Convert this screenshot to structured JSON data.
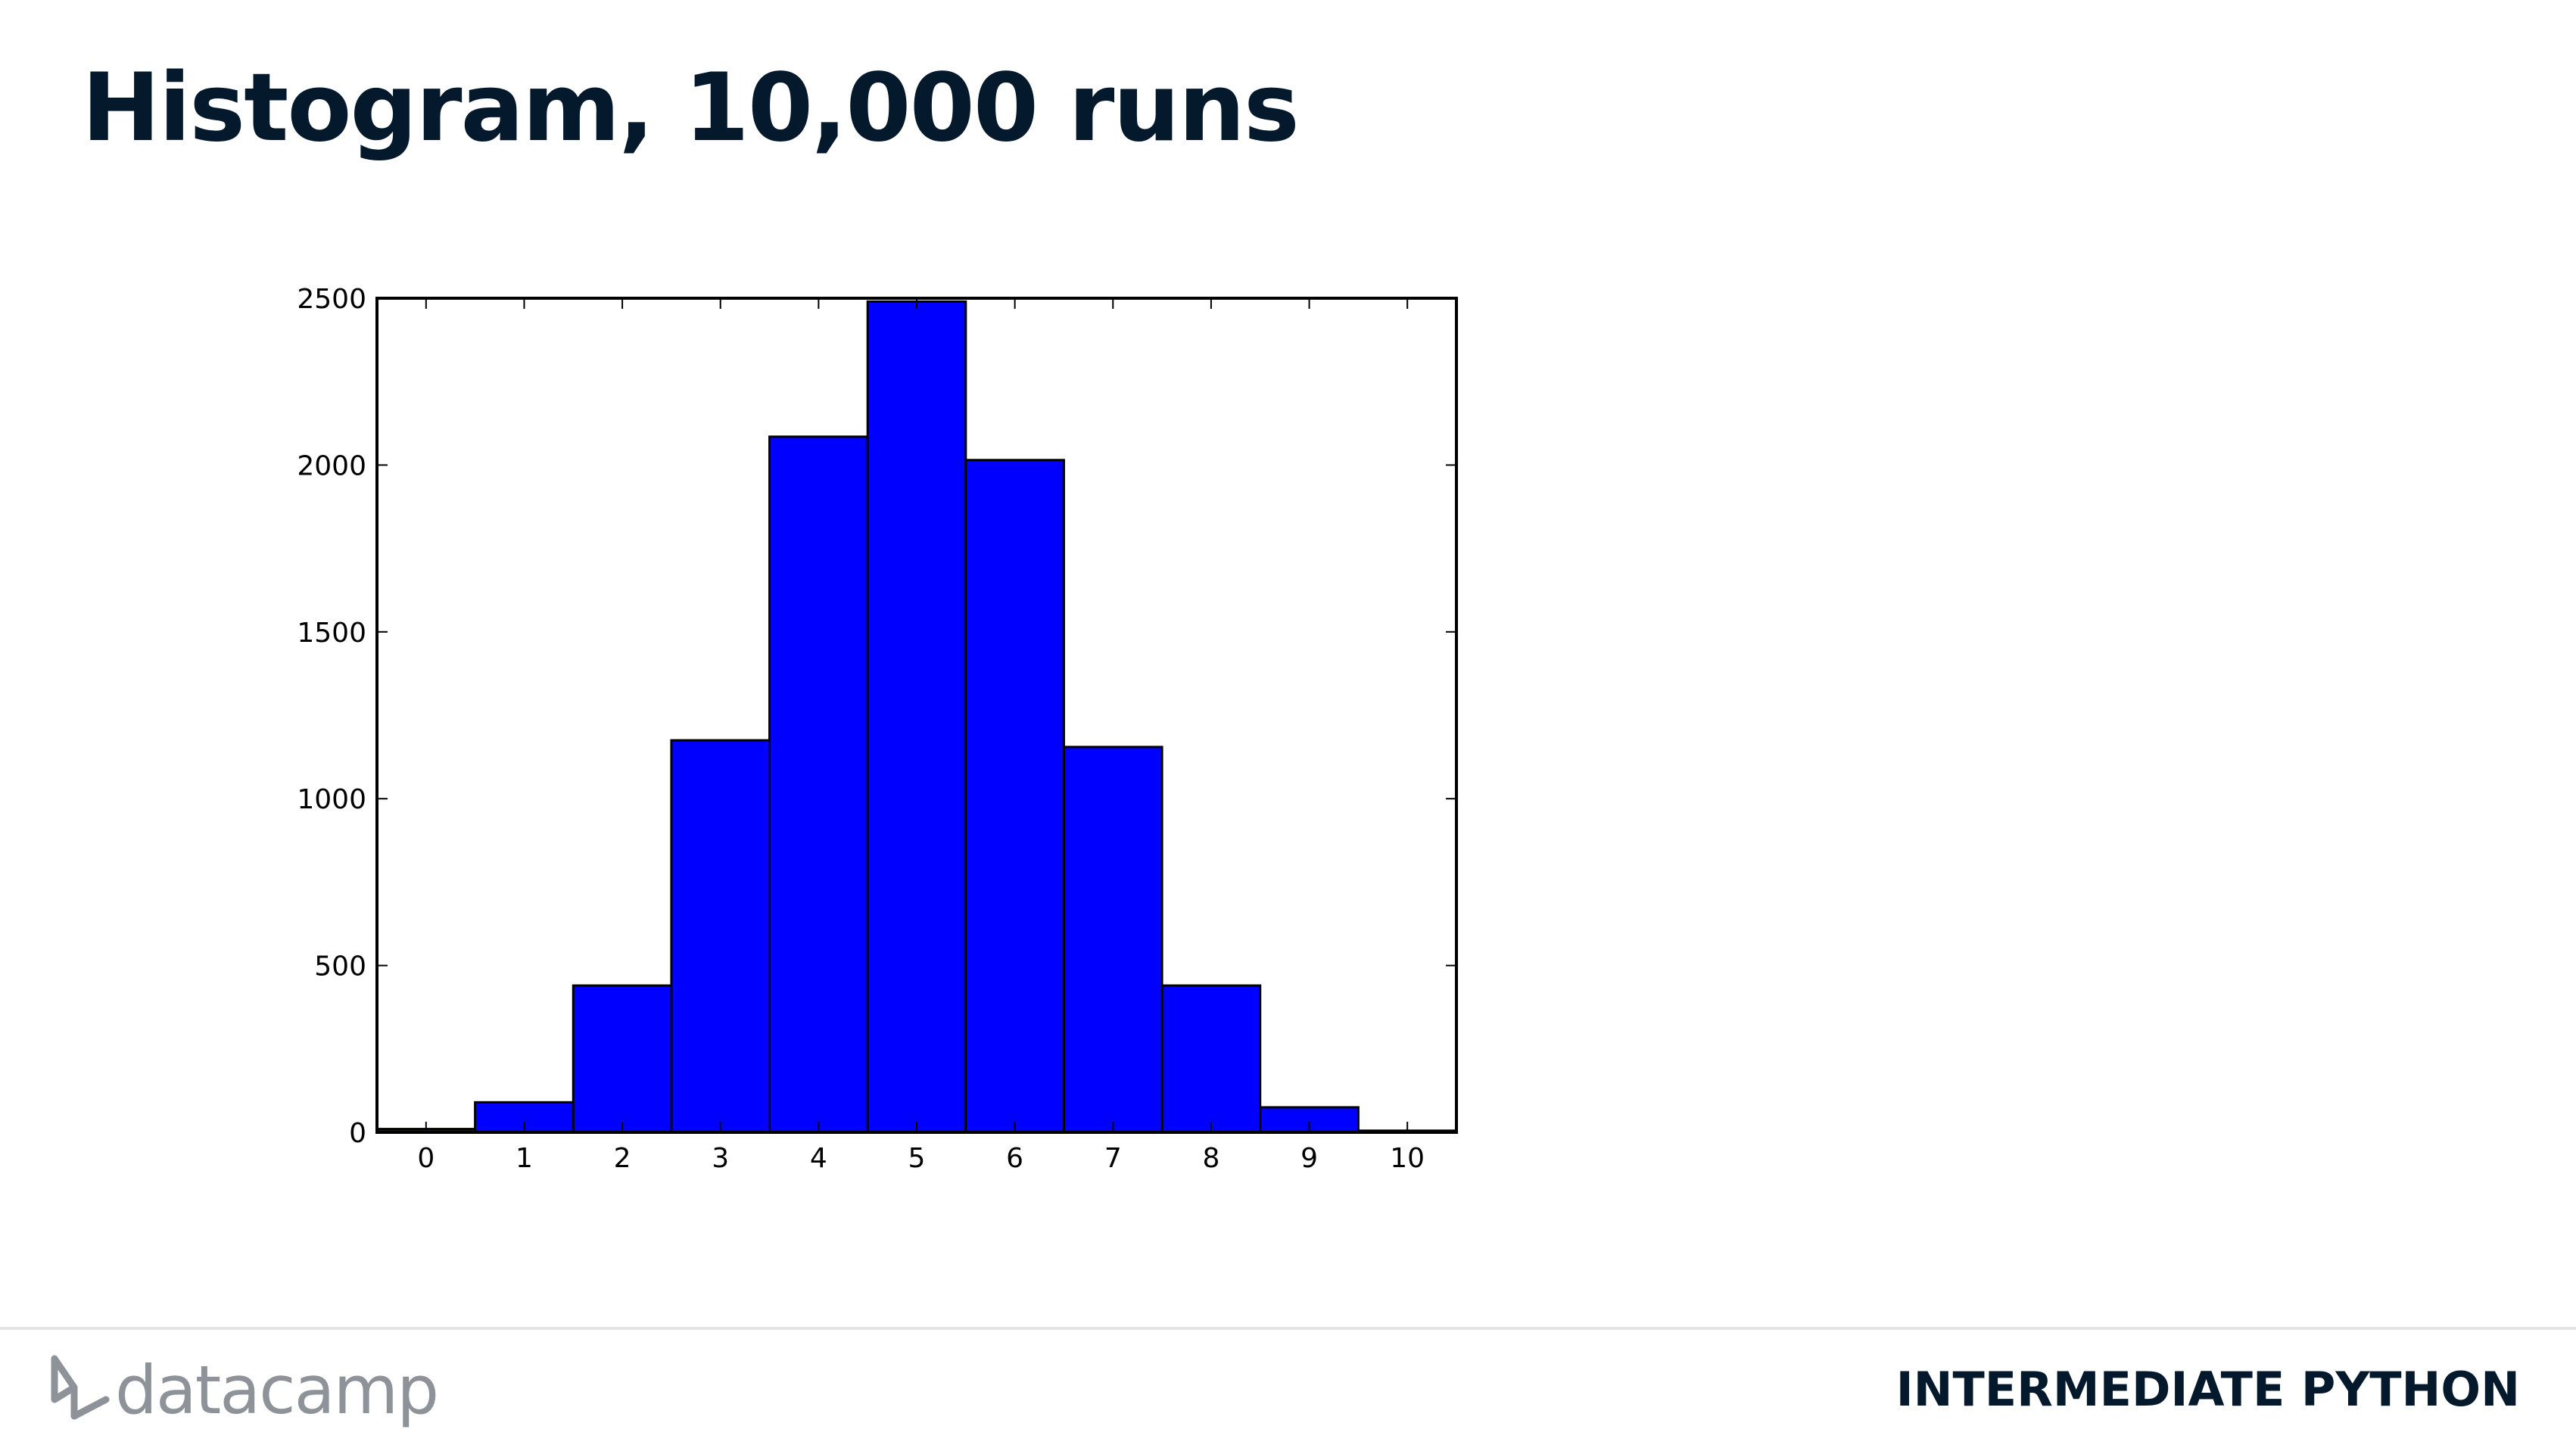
{
  "slide": {
    "title": "Histogram, 10,000 runs",
    "course": "INTERMEDIATE PYTHON",
    "brand": "datacamp"
  },
  "colors": {
    "bar_fill": "#0000ff",
    "bar_edge": "#000000",
    "title": "#05192d",
    "footer_text": "#05192d",
    "logo": "#8e9299",
    "footer_rule": "#e4e4e4"
  },
  "icons": {
    "logo": "datacamp-logo-icon"
  },
  "chart_data": {
    "type": "bar",
    "categories": [
      "0",
      "1",
      "2",
      "3",
      "4",
      "5",
      "6",
      "7",
      "8",
      "9",
      "10"
    ],
    "values": [
      10,
      90,
      440,
      1175,
      2085,
      2490,
      2015,
      1155,
      440,
      75,
      5
    ],
    "xlim": [
      -0.5,
      10.5
    ],
    "ylim": [
      0,
      2500
    ],
    "yticks": [
      0,
      500,
      1000,
      1500,
      2000,
      2500
    ],
    "xticks": [
      0,
      1,
      2,
      3,
      4,
      5,
      6,
      7,
      8,
      9,
      10
    ],
    "title": "",
    "xlabel": "",
    "ylabel": "",
    "grid": false
  }
}
